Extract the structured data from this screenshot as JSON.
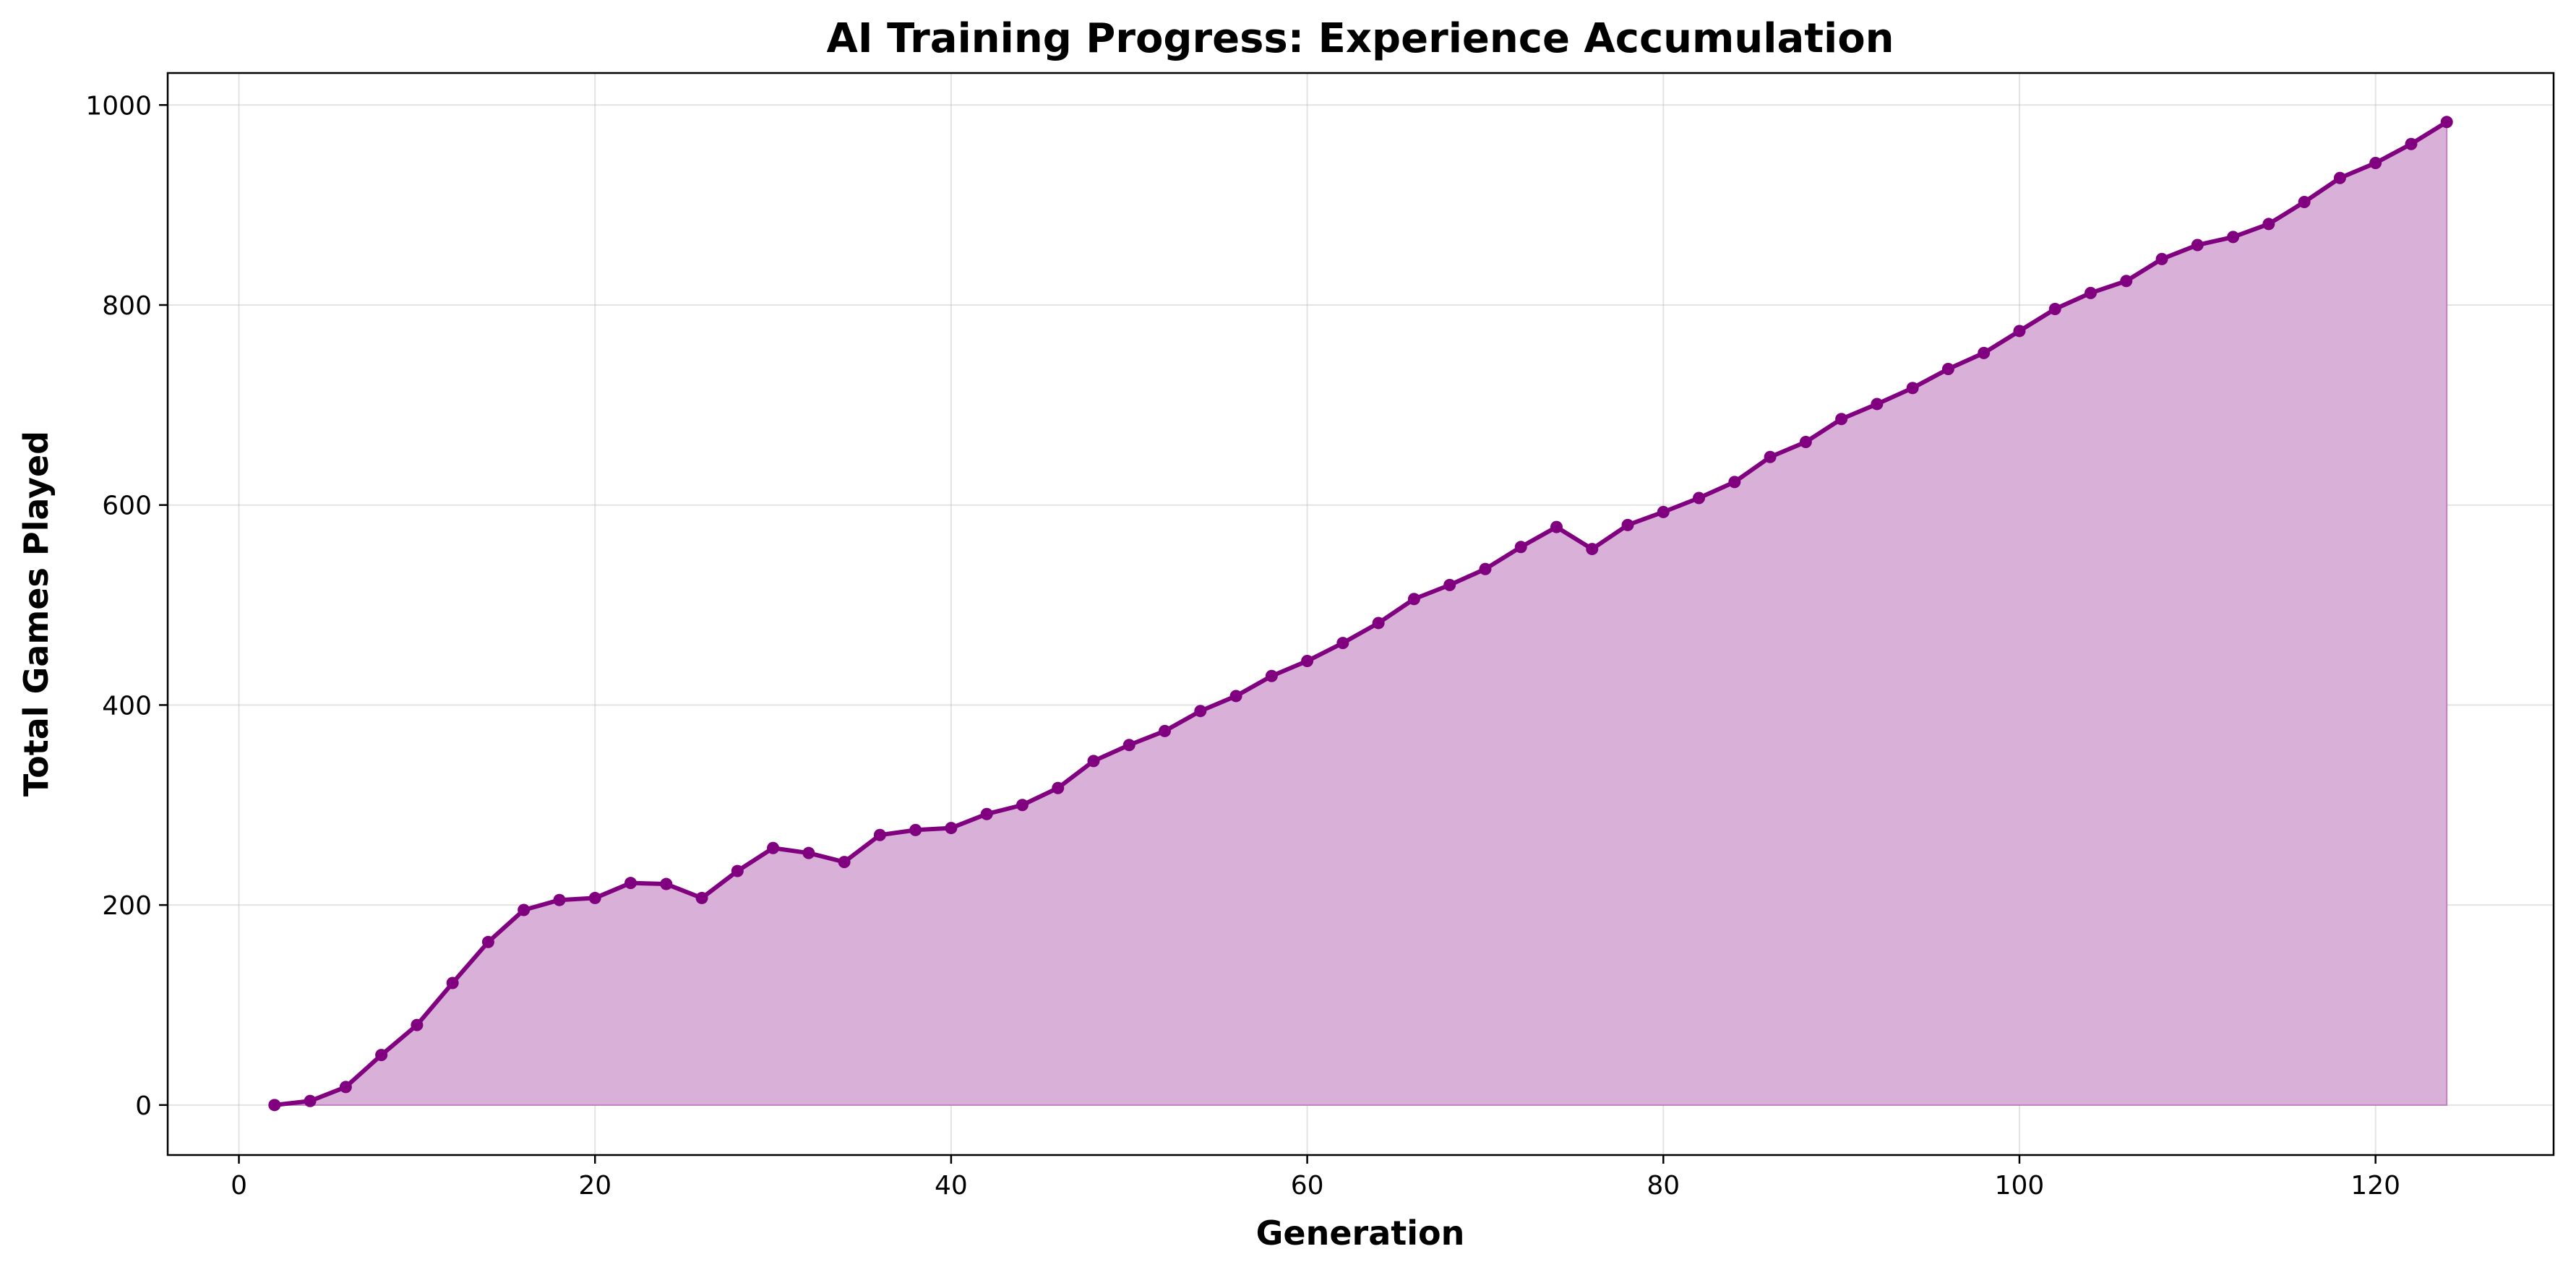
{
  "chart_data": {
    "type": "area",
    "title": "AI Training Progress: Experience Accumulation",
    "xlabel": "Generation",
    "ylabel": "Total Games Played",
    "xlim": [
      -4,
      130
    ],
    "ylim": [
      -50,
      1032
    ],
    "xticks": [
      0,
      20,
      40,
      60,
      80,
      100,
      120
    ],
    "yticks": [
      0,
      200,
      400,
      600,
      800,
      1000
    ],
    "grid": true,
    "legend": "none",
    "colors": {
      "line": "#800080",
      "fill": "#d8b0d8",
      "fill_edge": "#c080c0"
    },
    "series": [
      {
        "x": [
          2,
          4,
          6,
          8,
          10,
          12,
          14,
          16,
          18,
          20,
          22,
          24,
          26,
          28,
          30,
          32,
          34,
          36,
          38,
          40,
          42,
          44,
          46,
          48,
          50,
          52,
          54,
          56,
          58,
          60,
          62,
          64,
          66,
          68,
          70,
          72,
          74,
          76,
          78,
          80,
          82,
          84,
          86,
          88,
          90,
          92,
          94,
          96,
          98,
          100,
          102,
          104,
          106,
          108,
          110,
          112,
          114,
          116,
          118,
          120,
          122,
          124
        ],
        "y": [
          0,
          4,
          18,
          50,
          80,
          122,
          163,
          195,
          205,
          207,
          222,
          221,
          207,
          234,
          257,
          252,
          243,
          270,
          275,
          277,
          291,
          300,
          317,
          344,
          360,
          374,
          394,
          409,
          429,
          444,
          462,
          482,
          506,
          520,
          536,
          558,
          578,
          556,
          580,
          593,
          607,
          623,
          648,
          663,
          686,
          701,
          717,
          736,
          752,
          774,
          796,
          812,
          824,
          846,
          860,
          868,
          881,
          903,
          927,
          942,
          961,
          983
        ]
      }
    ]
  }
}
